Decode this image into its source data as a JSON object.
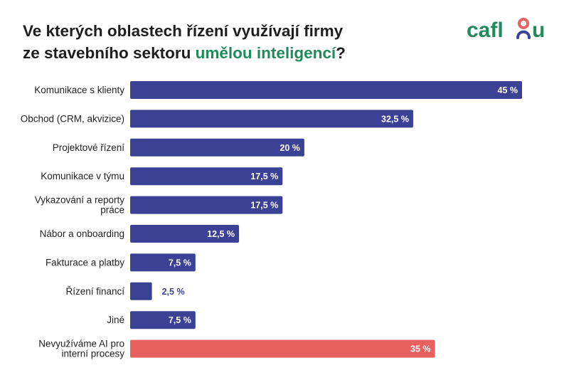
{
  "header": {
    "title_line1": "Ve kterých oblastech řízení využívají firmy",
    "title_line2_prefix": "ze stavebního sektoru ",
    "title_line2_highlight": "umělou inteligencí",
    "title_line2_suffix": "?",
    "highlight_color": "#1f8a5b",
    "logo_text": "caflou",
    "logo_colors": {
      "text": "#1f8a5b",
      "accent_red": "#e8615e",
      "accent_blue": "#3b4296"
    }
  },
  "chart_data": {
    "type": "bar",
    "orientation": "horizontal",
    "xlim": [
      0,
      45
    ],
    "categories": [
      "Komunikace s klienty",
      "Obchod (CRM, akvizice)",
      "Projektové řízení",
      "Komunikace v týmu",
      "Vykazování a reporty práce",
      "Nábor a onboarding",
      "Fakturace a platby",
      "Řízení financí",
      "Jiné",
      "Nevyužíváme AI pro interní procesy"
    ],
    "category_lines": [
      [
        "Komunikace s klienty"
      ],
      [
        "Obchod (CRM, akvizice)"
      ],
      [
        "Projektové řízení"
      ],
      [
        "Komunikace v týmu"
      ],
      [
        "Vykazování a reporty",
        "práce"
      ],
      [
        "Nábor a onboarding"
      ],
      [
        "Fakturace a platby"
      ],
      [
        "Řízení financí"
      ],
      [
        "Jiné"
      ],
      [
        "Nevyužíváme AI pro",
        "interní procesy"
      ]
    ],
    "values": [
      45,
      32.5,
      20,
      17.5,
      17.5,
      12.5,
      7.5,
      2.5,
      7.5,
      35
    ],
    "value_labels": [
      "45 %",
      "32,5 %",
      "20 %",
      "17,5 %",
      "17,5 %",
      "12,5 %",
      "7,5 %",
      "2,5 %",
      "7,5 %",
      "35 %"
    ],
    "colors": [
      "#3b4296",
      "#3b4296",
      "#3b4296",
      "#3b4296",
      "#3b4296",
      "#3b4296",
      "#3b4296",
      "#3b4296",
      "#3b4296",
      "#e8615e"
    ],
    "grid": false,
    "legend": "none"
  }
}
